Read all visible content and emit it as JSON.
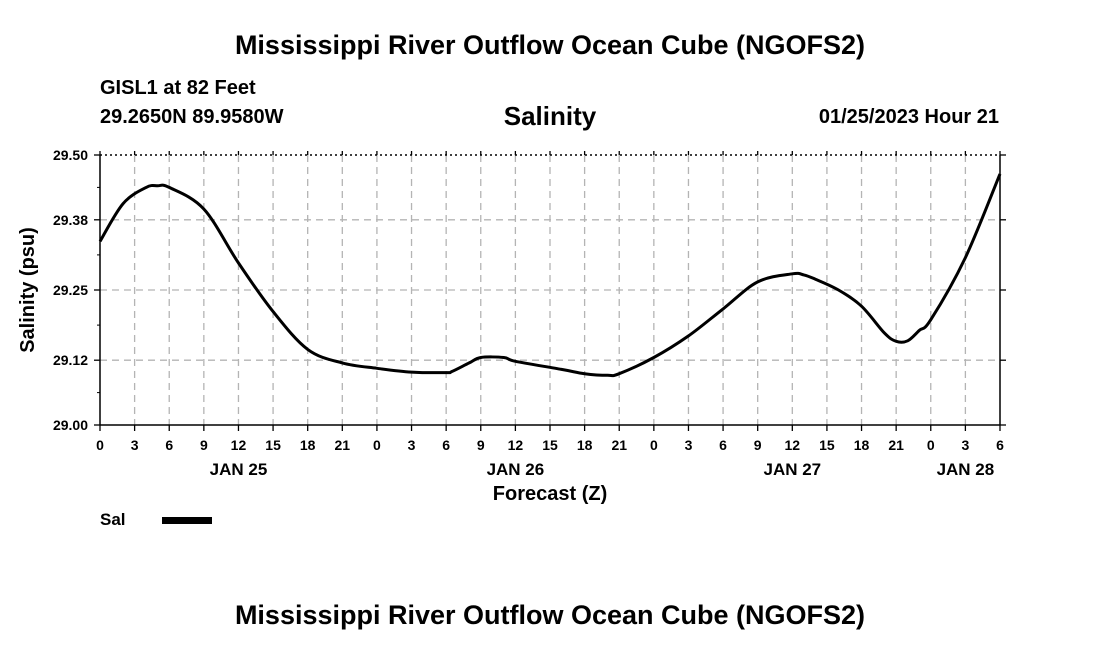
{
  "header": {
    "title": "Mississippi River Outflow Ocean Cube (NGOFS2)",
    "station": "GISL1 at 82 Feet",
    "coords": "29.2650N  89.9580W",
    "chart_title": "Salinity",
    "datetime": "01/25/2023 Hour 21"
  },
  "legend": {
    "label": "Sal",
    "color": "#000000"
  },
  "footer": {
    "title": "Mississippi River Outflow Ocean Cube (NGOFS2)"
  },
  "chart_data": {
    "type": "line",
    "title": "Salinity",
    "xlabel": "Forecast (Z)",
    "ylabel": "Salinity (psu)",
    "x_unit": "hours from JAN 25 00Z",
    "xlim": [
      0,
      78
    ],
    "ylim": [
      29.0,
      29.5
    ],
    "grid": true,
    "y_ticks": [
      29.0,
      29.12,
      29.25,
      29.38,
      29.5
    ],
    "y_tick_labels": [
      "29.00",
      "29.12",
      "29.25",
      "29.38",
      "29.50"
    ],
    "x_ticks": [
      0,
      3,
      6,
      9,
      12,
      15,
      18,
      21,
      24,
      27,
      30,
      33,
      36,
      39,
      42,
      45,
      48,
      51,
      54,
      57,
      60,
      63,
      66,
      69,
      72,
      75,
      78
    ],
    "x_tick_labels": [
      "0",
      "3",
      "6",
      "9",
      "12",
      "15",
      "18",
      "21",
      "0",
      "3",
      "6",
      "9",
      "12",
      "15",
      "18",
      "21",
      "0",
      "3",
      "6",
      "9",
      "12",
      "15",
      "18",
      "21",
      "0",
      "3",
      "6"
    ],
    "date_labels": [
      {
        "x": 12,
        "label": "JAN 25"
      },
      {
        "x": 36,
        "label": "JAN 26"
      },
      {
        "x": 60,
        "label": "JAN 27"
      },
      {
        "x": 75,
        "label": "JAN 28"
      }
    ],
    "series": [
      {
        "name": "Sal",
        "color": "#000000",
        "x": [
          0,
          2,
          4,
          5,
          6,
          9,
          12,
          15,
          18,
          21,
          24,
          27,
          30,
          30.5,
          32,
          33,
          35,
          36,
          40,
          42,
          44,
          45,
          48,
          51,
          54,
          57,
          60,
          61,
          62,
          64,
          66,
          68,
          69,
          70,
          71,
          72,
          75,
          78
        ],
        "values": [
          29.34,
          29.41,
          29.44,
          29.443,
          29.44,
          29.4,
          29.3,
          29.21,
          29.14,
          29.115,
          29.105,
          29.098,
          29.097,
          29.099,
          29.115,
          29.125,
          29.125,
          29.118,
          29.103,
          29.095,
          29.092,
          29.095,
          29.125,
          29.165,
          29.215,
          29.265,
          29.28,
          29.278,
          29.27,
          29.25,
          29.22,
          29.17,
          29.155,
          29.156,
          29.175,
          29.195,
          29.31,
          29.465
        ]
      }
    ]
  }
}
